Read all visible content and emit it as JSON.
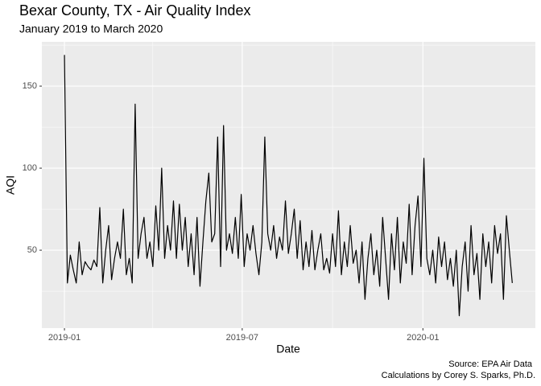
{
  "chart_data": {
    "type": "line",
    "title": "Bexar County, TX - Air Quality Index",
    "subtitle": "January 2019 to March 2020",
    "x_label": "Date",
    "y_label": "AQI",
    "caption": [
      "Source: EPA Air Data",
      "Calculations by Corey S. Sparks, Ph.D."
    ],
    "color": "#000000",
    "grid": true,
    "xlim": [
      -23,
      479.5
    ],
    "xticks": [
      {
        "value": 0,
        "label": "2019-01"
      },
      {
        "value": 181,
        "label": "2019-07"
      },
      {
        "value": 365,
        "label": "2020-01"
      }
    ],
    "xminorticks": [
      90,
      273
    ],
    "ylim": [
      2.5,
      177
    ],
    "yticks": [
      50,
      100,
      150
    ],
    "yminorticks": [
      25,
      75,
      125,
      175
    ],
    "x": [
      0,
      3,
      6,
      9,
      12,
      15,
      18,
      21,
      24,
      27,
      30,
      33,
      36,
      39,
      42,
      45,
      48,
      51,
      54,
      57,
      60,
      63,
      66,
      69,
      72,
      75,
      78,
      81,
      84,
      87,
      90,
      93,
      96,
      99,
      102,
      105,
      108,
      111,
      114,
      117,
      120,
      123,
      126,
      129,
      132,
      135,
      138,
      141,
      144,
      147,
      150,
      153,
      156,
      159,
      162,
      165,
      168,
      171,
      174,
      177,
      180,
      183,
      186,
      189,
      192,
      195,
      198,
      201,
      204,
      207,
      210,
      213,
      216,
      219,
      222,
      225,
      228,
      231,
      234,
      237,
      240,
      243,
      246,
      249,
      252,
      255,
      258,
      261,
      264,
      267,
      270,
      273,
      276,
      279,
      282,
      285,
      288,
      291,
      294,
      297,
      300,
      303,
      306,
      309,
      312,
      315,
      318,
      321,
      324,
      327,
      330,
      333,
      336,
      339,
      342,
      345,
      348,
      351,
      354,
      357,
      360,
      363,
      366,
      369,
      372,
      375,
      378,
      381,
      384,
      387,
      390,
      393,
      396,
      399,
      402,
      405,
      408,
      411,
      414,
      417,
      420,
      423,
      426,
      429,
      432,
      435,
      438,
      441,
      444,
      447,
      450,
      453,
      456
    ],
    "values": [
      169,
      30,
      47,
      38,
      30,
      55,
      35,
      43,
      40,
      38,
      44,
      40,
      76,
      30,
      50,
      65,
      32,
      45,
      55,
      45,
      75,
      35,
      45,
      30,
      139,
      45,
      60,
      70,
      45,
      55,
      40,
      77,
      50,
      100,
      45,
      65,
      50,
      80,
      45,
      78,
      50,
      70,
      40,
      60,
      35,
      70,
      28,
      55,
      80,
      97,
      55,
      60,
      119,
      40,
      126,
      50,
      60,
      48,
      70,
      45,
      84,
      40,
      60,
      50,
      65,
      48,
      35,
      55,
      119,
      60,
      50,
      65,
      45,
      58,
      50,
      80,
      48,
      60,
      75,
      45,
      68,
      38,
      55,
      40,
      62,
      38,
      50,
      60,
      38,
      45,
      36,
      60,
      40,
      74,
      35,
      55,
      40,
      65,
      42,
      50,
      30,
      55,
      20,
      45,
      60,
      35,
      50,
      28,
      70,
      45,
      20,
      60,
      38,
      70,
      30,
      55,
      42,
      78,
      35,
      65,
      83,
      40,
      106,
      45,
      35,
      50,
      30,
      58,
      40,
      55,
      32,
      45,
      28,
      50,
      10,
      40,
      55,
      25,
      65,
      35,
      48,
      20,
      60,
      40,
      55,
      30,
      65,
      48,
      60,
      20,
      71,
      50,
      30
    ]
  }
}
